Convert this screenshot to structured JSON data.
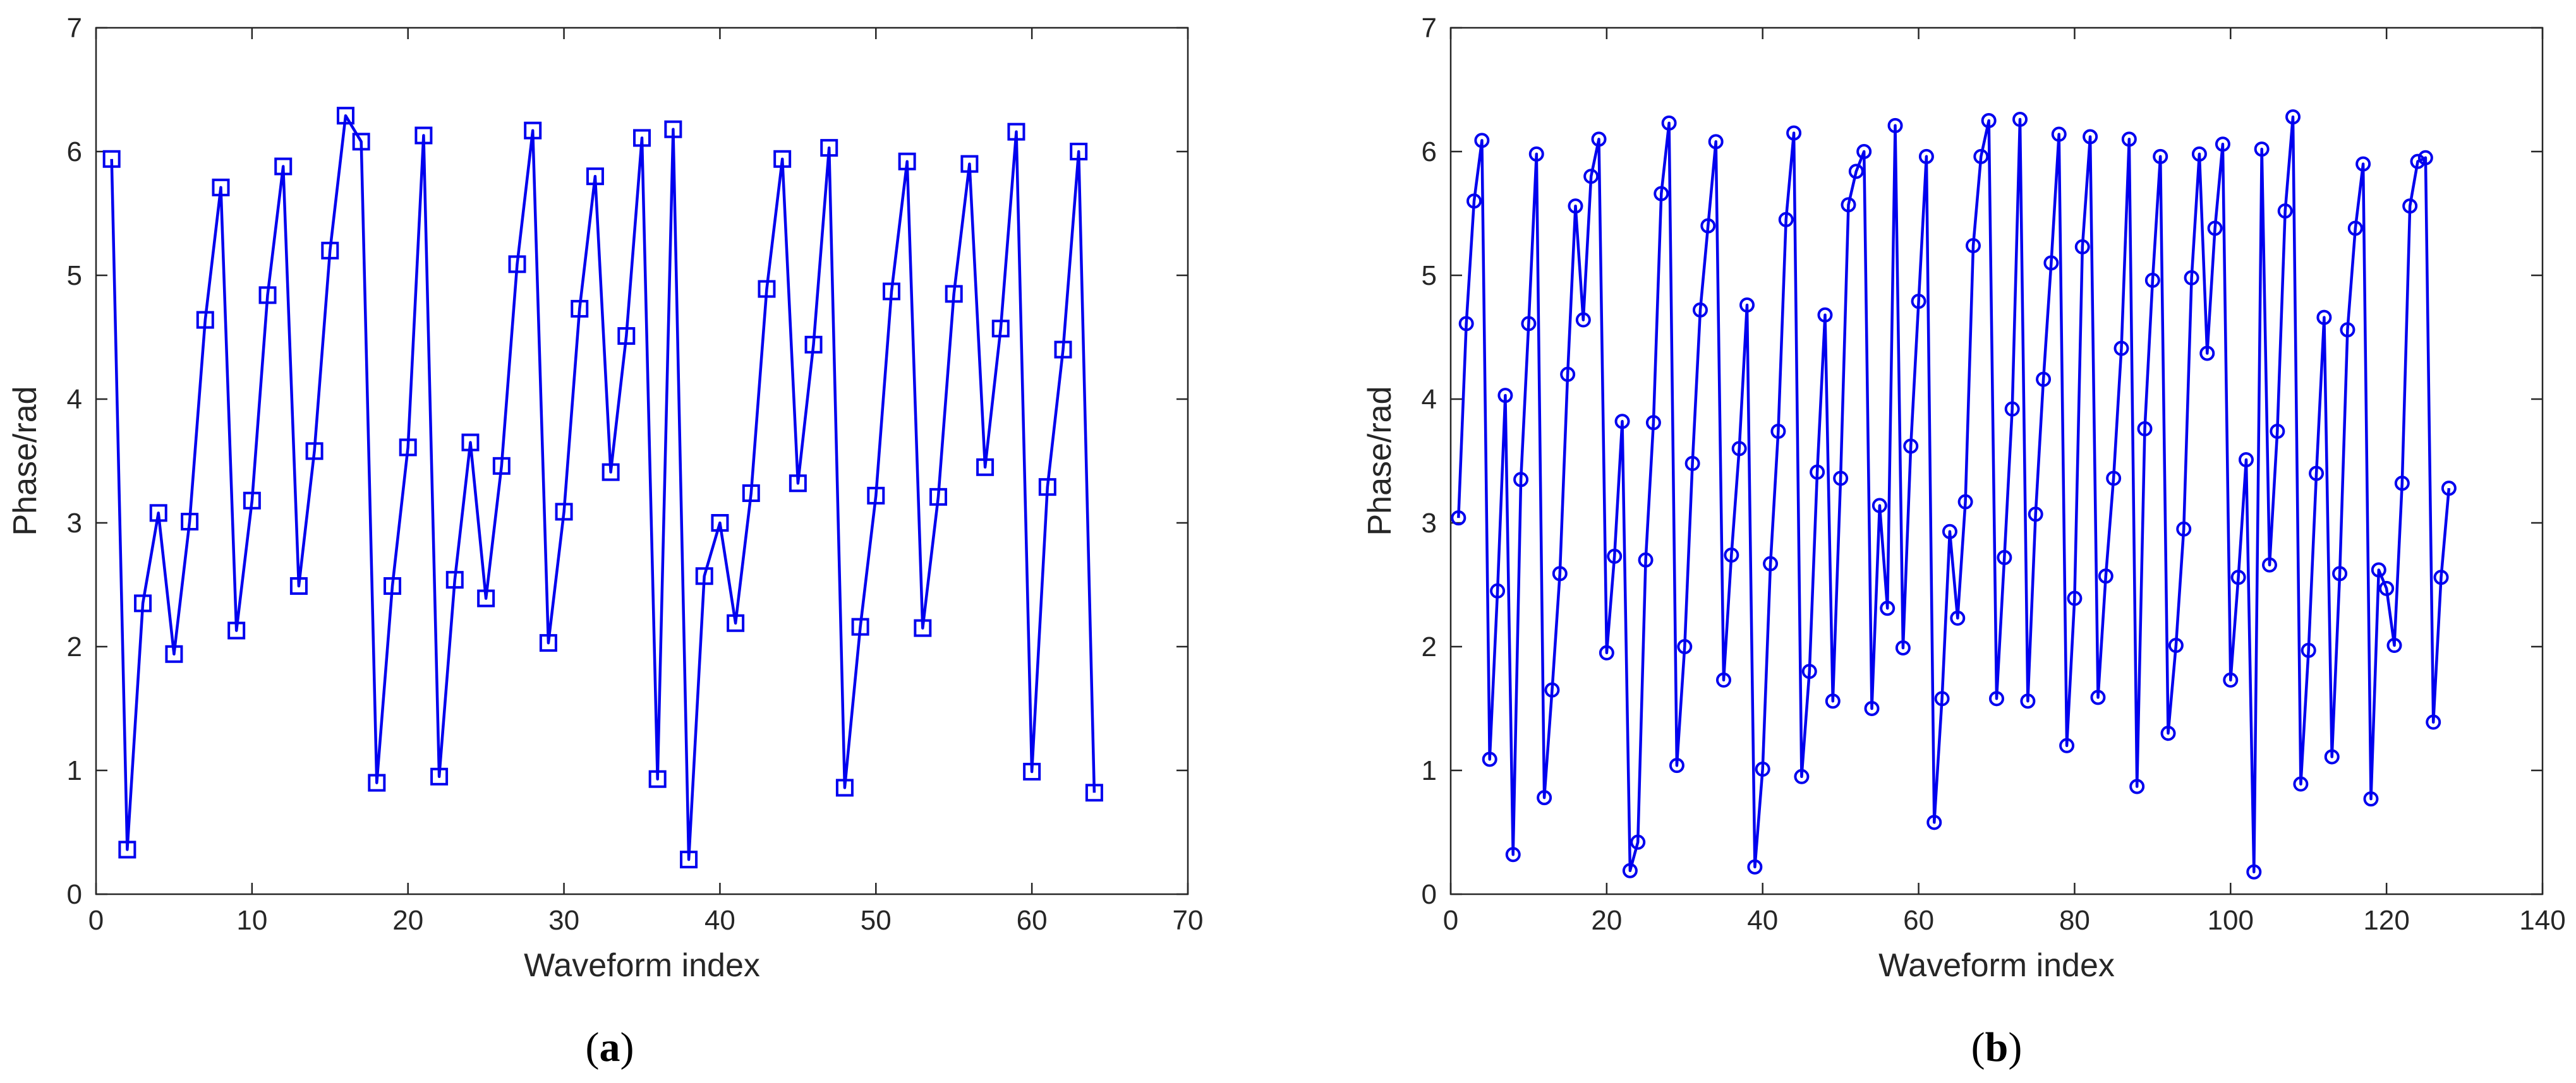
{
  "chart_data": [
    {
      "type": "line",
      "panel_label": "a",
      "xlabel": "Waveform index",
      "ylabel": "Phase/rad",
      "xlim": [
        0,
        70
      ],
      "ylim": [
        0,
        7
      ],
      "xticks": [
        0,
        10,
        20,
        30,
        40,
        50,
        60,
        70
      ],
      "yticks": [
        0,
        1,
        2,
        3,
        4,
        5,
        6,
        7
      ],
      "marker": "square",
      "color": "#0000ee",
      "x": [
        1,
        2,
        3,
        4,
        5,
        6,
        7,
        8,
        9,
        10,
        11,
        12,
        13,
        14,
        15,
        16,
        17,
        18,
        19,
        20,
        21,
        22,
        23,
        24,
        25,
        26,
        27,
        28,
        29,
        30,
        31,
        32,
        33,
        34,
        35,
        36,
        37,
        38,
        39,
        40,
        41,
        42,
        43,
        44,
        45,
        46,
        47,
        48,
        49,
        50,
        51,
        52,
        53,
        54,
        55,
        56,
        57,
        58,
        59,
        60,
        61,
        62,
        63,
        64
      ],
      "y": [
        5.94,
        0.36,
        2.35,
        3.08,
        1.94,
        3.01,
        4.64,
        5.71,
        2.13,
        3.18,
        4.84,
        5.88,
        2.49,
        3.58,
        5.2,
        6.29,
        6.08,
        0.9,
        2.49,
        3.61,
        6.13,
        0.95,
        2.54,
        3.65,
        2.39,
        3.46,
        5.09,
        6.17,
        2.03,
        3.09,
        4.73,
        5.8,
        3.41,
        4.51,
        6.11,
        0.93,
        6.18,
        0.28,
        2.57,
        3.0,
        2.19,
        3.24,
        4.89,
        5.94,
        3.32,
        4.44,
        6.03,
        0.86,
        2.16,
        3.22,
        4.87,
        5.92,
        2.15,
        3.21,
        4.85,
        5.9,
        3.45,
        4.57,
        6.16,
        0.99,
        3.29,
        4.4,
        6.0,
        0.82
      ]
    },
    {
      "type": "line",
      "panel_label": "b",
      "xlabel": "Waveform index",
      "ylabel": "Phase/rad",
      "xlim": [
        0,
        140
      ],
      "ylim": [
        0,
        7
      ],
      "xticks": [
        0,
        20,
        40,
        60,
        80,
        100,
        120,
        140
      ],
      "yticks": [
        0,
        1,
        2,
        3,
        4,
        5,
        6,
        7
      ],
      "marker": "circle",
      "color": "#0000ee",
      "x": [
        1,
        2,
        3,
        4,
        5,
        6,
        7,
        8,
        9,
        10,
        11,
        12,
        13,
        14,
        15,
        16,
        17,
        18,
        19,
        20,
        21,
        22,
        23,
        24,
        25,
        26,
        27,
        28,
        29,
        30,
        31,
        32,
        33,
        34,
        35,
        36,
        37,
        38,
        39,
        40,
        41,
        42,
        43,
        44,
        45,
        46,
        47,
        48,
        49,
        50,
        51,
        52,
        53,
        54,
        55,
        56,
        57,
        58,
        59,
        60,
        61,
        62,
        63,
        64,
        65,
        66,
        67,
        68,
        69,
        70,
        71,
        72,
        73,
        74,
        75,
        76,
        77,
        78,
        79,
        80,
        81,
        82,
        83,
        84,
        85,
        86,
        87,
        88,
        89,
        90,
        91,
        92,
        93,
        94,
        95,
        96,
        97,
        98,
        99,
        100,
        101,
        102,
        103,
        104,
        105,
        106,
        107,
        108,
        109,
        110,
        111,
        112,
        113,
        114,
        115,
        116,
        117,
        118,
        119,
        120,
        121,
        122,
        123,
        124,
        125,
        126,
        127,
        128
      ],
      "y": [
        3.04,
        4.61,
        5.6,
        6.09,
        1.09,
        2.45,
        4.03,
        0.32,
        3.35,
        4.61,
        5.98,
        0.78,
        1.65,
        2.59,
        4.2,
        5.56,
        4.64,
        5.8,
        6.1,
        1.95,
        2.73,
        3.82,
        0.19,
        0.42,
        2.7,
        3.81,
        5.66,
        6.23,
        1.04,
        2.0,
        3.48,
        4.72,
        5.4,
        6.08,
        1.73,
        2.74,
        3.6,
        4.76,
        0.22,
        1.01,
        2.67,
        3.74,
        5.45,
        6.15,
        0.95,
        1.8,
        3.41,
        4.68,
        1.56,
        3.36,
        5.57,
        5.84,
        6.0,
        1.5,
        3.14,
        2.31,
        6.21,
        1.99,
        3.62,
        4.79,
        5.96,
        0.58,
        1.58,
        2.93,
        2.23,
        3.17,
        5.24,
        5.96,
        6.25,
        1.58,
        2.72,
        3.92,
        6.26,
        1.56,
        3.07,
        4.16,
        5.1,
        6.14,
        1.2,
        2.39,
        5.23,
        6.12,
        1.59,
        2.57,
        3.36,
        4.41,
        6.1,
        0.87,
        3.76,
        4.96,
        5.96,
        1.3,
        2.01,
        2.95,
        4.98,
        5.98,
        4.37,
        5.38,
        6.06,
        1.73,
        2.56,
        3.51,
        0.18,
        6.02,
        2.66,
        3.74,
        5.52,
        6.28,
        0.89,
        1.97,
        3.4,
        4.66,
        1.11,
        2.59,
        4.56,
        5.38,
        5.9,
        0.77,
        2.62,
        2.47,
        2.01,
        3.32,
        5.56,
        5.92,
        5.95,
        1.39,
        2.56,
        3.28
      ]
    }
  ]
}
